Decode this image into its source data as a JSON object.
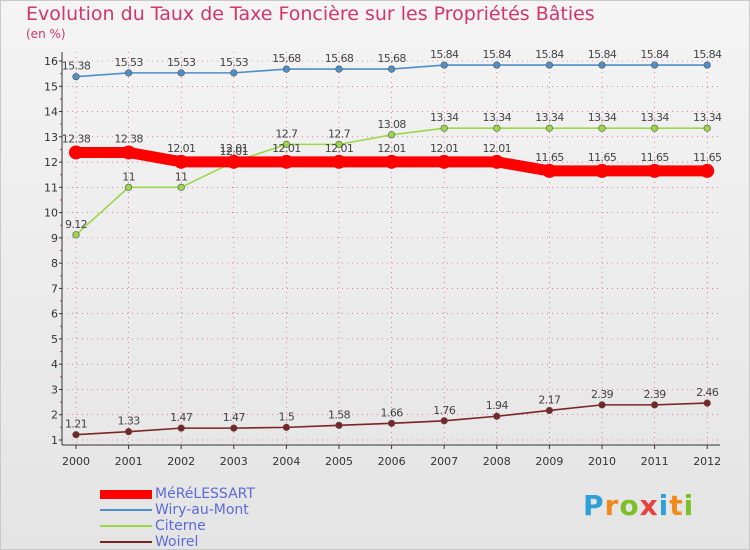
{
  "title": "Evolution du Taux de Taxe Foncière sur les Propriétés Bâties",
  "subtitle": "(en %)",
  "brand": {
    "text": "Proxiti",
    "letter_colors": [
      "#2f9fd8",
      "#f08a1c",
      "#7cbf26",
      "#e8423f",
      "#2f9fd8",
      "#f08a1c",
      "#7cbf26"
    ]
  },
  "colors": {
    "grid": "#d63a72",
    "axis_text": "#333333",
    "value_text": "#444444"
  },
  "chart_data": {
    "type": "line",
    "title": "Evolution du Taux de Taxe Foncière sur les Propriétés Bâties",
    "ylabel": "(en %)",
    "xlabel": "",
    "x": [
      "2000",
      "2001",
      "2002",
      "2003",
      "2004",
      "2005",
      "2006",
      "2007",
      "2008",
      "2009",
      "2010",
      "2011",
      "2012"
    ],
    "yticks": [
      1,
      2,
      3,
      4,
      5,
      6,
      7,
      8,
      9,
      10,
      11,
      12,
      13,
      14,
      15,
      16
    ],
    "ylim": [
      0.5,
      16.3
    ],
    "legend_position": "bottom-left",
    "series": [
      {
        "name": "Wiry-au-Mont",
        "color": "#4f8fc8",
        "width": "thin",
        "values": [
          15.38,
          15.53,
          15.53,
          15.53,
          15.68,
          15.68,
          15.68,
          15.84,
          15.84,
          15.84,
          15.84,
          15.84,
          15.84
        ],
        "labels": [
          "15.38",
          "15.53",
          "15.53",
          "15.53",
          "15.68",
          "15.68",
          "15.68",
          "15.84",
          "15.84",
          "15.84",
          "15.84",
          "15.84",
          "15.84"
        ]
      },
      {
        "name": "Citerne",
        "color": "#9ad84a",
        "width": "thin",
        "values": [
          9.12,
          11,
          11,
          12.01,
          12.7,
          12.7,
          13.08,
          13.34,
          13.34,
          13.34,
          13.34,
          13.34,
          13.34
        ],
        "labels": [
          "9.12",
          "11",
          "11",
          "12.01",
          "12.7",
          "12.7",
          "13.08",
          "13.34",
          "13.34",
          "13.34",
          "13.34",
          "13.34",
          "13.34"
        ]
      },
      {
        "name": "Woirel",
        "color": "#7a2424",
        "width": "thin",
        "values": [
          1.21,
          1.33,
          1.47,
          1.47,
          1.5,
          1.58,
          1.66,
          1.76,
          1.94,
          2.17,
          2.39,
          2.39,
          2.46
        ],
        "labels": [
          "1.21",
          "1.33",
          "1.47",
          "1.47",
          "1.5",
          "1.58",
          "1.66",
          "1.76",
          "1.94",
          "2.17",
          "2.39",
          "2.39",
          "2.46"
        ]
      },
      {
        "name": "MéRéLESSART",
        "color": "#ff0000",
        "width": "thick",
        "values": [
          12.38,
          12.38,
          12.01,
          12.01,
          12.01,
          12.01,
          12.01,
          12.01,
          12.01,
          11.65,
          11.65,
          11.65,
          11.65
        ],
        "labels": [
          "12.38",
          "12.38",
          "12.01",
          "12.01",
          "12.01",
          "12.01",
          "12.01",
          "12.01",
          "12.01",
          "11.65",
          "11.65",
          "11.65",
          "11.65"
        ]
      }
    ],
    "legend_order": [
      "MéRéLESSART",
      "Wiry-au-Mont",
      "Citerne",
      "Woirel"
    ]
  }
}
